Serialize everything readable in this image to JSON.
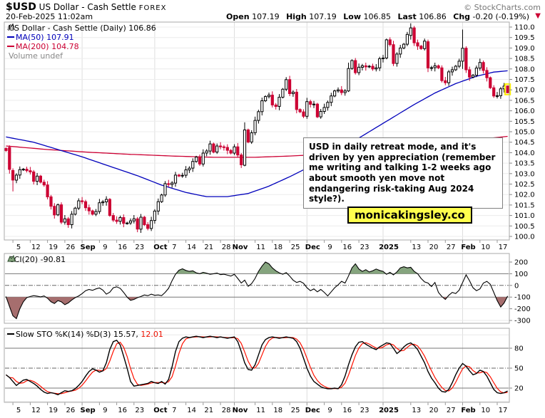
{
  "header": {
    "symbol": "$USD",
    "title": "US Dollar - Cash Settle",
    "exchange": "FOREX",
    "datetime": "20-Feb-2025 11:02am",
    "copyright": "© StockCharts.com",
    "quote": {
      "open_label": "Open",
      "open_value": "107.19",
      "high_label": "High",
      "high_value": "107.19",
      "low_label": "Low",
      "low_value": "106.85",
      "last_label": "Last",
      "last_value": "106.86",
      "chg_label": "Chg",
      "chg_value": "-0.20 (-0.19%)",
      "direction_icon": "▼"
    }
  },
  "legend": {
    "series_label": "US Dollar - Cash Settle (Daily) 106.86",
    "ma50_label": "MA(50) 107.91",
    "ma200_label": "MA(200) 104.78",
    "volume_label": "Volume undef"
  },
  "panel_labels": {
    "cci_label": "CCI(20) -90.81",
    "sto_label": "Slow STO %K(14) %D(3) 15.57,",
    "sto_d_value": "12.01"
  },
  "annotation": {
    "text": "USD in daily retreat mode, and it's driven by yen appreciation (remember me writing and talking 1-2 weeks ago about smooth yen move not endangering risk-taking Aug 2024 style?)."
  },
  "watermark": {
    "text": "monicakingsley.co"
  },
  "colors": {
    "up": "#000000",
    "down": "#cc0033",
    "ma50": "#0000bb",
    "ma200": "#cc0033",
    "cci_fill_up": "#85a47e",
    "cci_fill_down": "#a66e6e",
    "sto_k": "#000000",
    "sto_d": "#ff1100",
    "highlight": "#ffee00",
    "grid": "#ececec",
    "month_grid": "#dedede",
    "band": "#777777",
    "panel_border": "#aaaaaa"
  },
  "x_axis": {
    "labels": [
      [
        "5",
        2
      ],
      [
        "12",
        7
      ],
      [
        "19",
        12
      ],
      [
        "26",
        17
      ],
      [
        "Sep",
        22
      ],
      [
        "9",
        27
      ],
      [
        "16",
        32
      ],
      [
        "23",
        37
      ],
      [
        "Oct",
        43
      ],
      [
        "7",
        47
      ],
      [
        "14",
        52
      ],
      [
        "21",
        57
      ],
      [
        "28",
        62
      ],
      [
        "Nov",
        66
      ],
      [
        "11",
        72
      ],
      [
        "18",
        77
      ],
      [
        "25",
        82
      ],
      [
        "Dec",
        87
      ],
      [
        "9",
        92
      ],
      [
        "16",
        97
      ],
      [
        "23",
        102
      ],
      [
        "2025",
        109
      ],
      [
        "13",
        117
      ],
      [
        "20",
        122
      ],
      [
        "27",
        127
      ],
      [
        "Feb",
        132
      ],
      [
        "10",
        137
      ],
      [
        "17",
        142
      ]
    ],
    "month_grid_idx": [
      22,
      43,
      66,
      87,
      109,
      132
    ]
  },
  "chart_data": [
    {
      "type": "candlestick",
      "title": "US Dollar - Cash Settle (Daily)",
      "last": 106.86,
      "ylim": [
        99.8,
        110.3
      ],
      "y_tick_min": 100.0,
      "y_tick_max": 110.0,
      "y_tick_step": 0.5,
      "closes": [
        104.1,
        103.2,
        102.69,
        102.93,
        103.19,
        103.21,
        103.14,
        103.08,
        102.63,
        102.88,
        102.59,
        102.46,
        101.89,
        101.44,
        101.03,
        101.51,
        100.68,
        100.84,
        100.56,
        101.06,
        101.35,
        101.7,
        101.66,
        101.37,
        101.22,
        101.06,
        101.19,
        101.61,
        101.65,
        101.77,
        101.0,
        100.78,
        100.72,
        100.9,
        100.62,
        100.64,
        100.74,
        100.84,
        100.35,
        100.92,
        100.56,
        100.38,
        100.76,
        101.21,
        101.66,
        101.98,
        102.52,
        102.48,
        102.55,
        102.93,
        102.89,
        102.92,
        103.18,
        103.26,
        103.58,
        103.79,
        103.46,
        103.98,
        104.08,
        104.42,
        104.03,
        104.32,
        104.28,
        104.25,
        104.11,
        103.98,
        104.28,
        103.89,
        103.42,
        105.09,
        104.51,
        104.95,
        105.54,
        105.96,
        106.48,
        106.68,
        106.75,
        106.28,
        106.21,
        106.65,
        107.03,
        107.49,
        106.82,
        106.89,
        106.06,
        105.95,
        105.74,
        106.44,
        106.31,
        106.32,
        105.71,
        105.97,
        106.16,
        106.4,
        106.71,
        106.95,
        107.0,
        106.87,
        106.95,
        108.02,
        108.4,
        107.82,
        108.08,
        108.15,
        108.1,
        108.13,
        108.0,
        108.05,
        108.49,
        108.52,
        109.39,
        109.16,
        108.26,
        108.71,
        109.0,
        109.18,
        109.65,
        109.96,
        109.25,
        109.09,
        108.97,
        109.33,
        108.05,
        108.06,
        108.15,
        108.05,
        107.44,
        107.34,
        107.86,
        107.96,
        108.13,
        108.37,
        108.99,
        107.96,
        107.61,
        107.7,
        108.04,
        108.31,
        107.93,
        107.58,
        107.1,
        106.71,
        106.72,
        107.05,
        107.18,
        106.86
      ],
      "ohlc_overrides": {
        "1": [
          104.25,
          104.35,
          103.0,
          103.2
        ],
        "2": [
          103.15,
          103.25,
          102.15,
          102.69
        ],
        "69": [
          103.4,
          105.45,
          103.35,
          105.09
        ],
        "99": [
          106.95,
          108.3,
          106.9,
          108.02
        ],
        "117": [
          109.6,
          110.18,
          109.4,
          109.96
        ],
        "122": [
          109.3,
          109.4,
          107.85,
          108.05
        ],
        "132": [
          108.37,
          109.88,
          108.0,
          108.99
        ],
        "145": [
          107.19,
          107.19,
          106.85,
          106.86
        ]
      },
      "ma50": {
        "label": "MA(50)",
        "value": 107.91,
        "points": [
          [
            0,
            104.75
          ],
          [
            8,
            104.5
          ],
          [
            16,
            104.1
          ],
          [
            22,
            103.8
          ],
          [
            30,
            103.35
          ],
          [
            38,
            102.9
          ],
          [
            45,
            102.45
          ],
          [
            52,
            102.1
          ],
          [
            58,
            101.9
          ],
          [
            64,
            101.9
          ],
          [
            70,
            102.05
          ],
          [
            76,
            102.4
          ],
          [
            82,
            102.85
          ],
          [
            88,
            103.35
          ],
          [
            94,
            103.9
          ],
          [
            100,
            104.5
          ],
          [
            106,
            105.1
          ],
          [
            112,
            105.7
          ],
          [
            118,
            106.3
          ],
          [
            124,
            106.85
          ],
          [
            130,
            107.3
          ],
          [
            136,
            107.65
          ],
          [
            141,
            107.85
          ],
          [
            145,
            107.91
          ]
        ]
      },
      "ma200": {
        "label": "MA(200)",
        "value": 104.78,
        "points": [
          [
            0,
            104.32
          ],
          [
            12,
            104.15
          ],
          [
            24,
            104.02
          ],
          [
            36,
            103.92
          ],
          [
            48,
            103.84
          ],
          [
            60,
            103.78
          ],
          [
            72,
            103.78
          ],
          [
            82,
            103.84
          ],
          [
            92,
            103.92
          ],
          [
            102,
            104.04
          ],
          [
            112,
            104.2
          ],
          [
            122,
            104.38
          ],
          [
            130,
            104.52
          ],
          [
            138,
            104.66
          ],
          [
            145,
            104.78
          ]
        ]
      },
      "highlight_last": true
    },
    {
      "type": "area-line",
      "name": "CCI(20)",
      "last": -90.81,
      "ticks": [
        200,
        100,
        0,
        -100,
        -200,
        -300
      ],
      "upper_band": 100,
      "lower_band": -100,
      "values": [
        -95,
        -180,
        -260,
        -285,
        -200,
        -140,
        -105,
        -95,
        -88,
        -92,
        -98,
        -90,
        -110,
        -140,
        -155,
        -130,
        -140,
        -165,
        -150,
        -125,
        -105,
        -90,
        -70,
        -45,
        -35,
        -42,
        -30,
        -22,
        -40,
        -75,
        -58,
        -20,
        -12,
        -25,
        -60,
        -100,
        -128,
        -120,
        -105,
        -95,
        -82,
        -88,
        -75,
        -85,
        -82,
        -88,
        -60,
        -25,
        40,
        95,
        130,
        142,
        128,
        120,
        125,
        108,
        100,
        112,
        104,
        95,
        100,
        106,
        92,
        96,
        88,
        80,
        95,
        60,
        20,
        45,
        -8,
        15,
        60,
        120,
        165,
        200,
        185,
        150,
        125,
        108,
        95,
        110,
        80,
        45,
        25,
        35,
        18,
        -20,
        -45,
        -30,
        -55,
        -35,
        -60,
        -90,
        -55,
        -20,
        5,
        35,
        20,
        80,
        150,
        185,
        140,
        120,
        135,
        115,
        125,
        140,
        128,
        120,
        95,
        112,
        90,
        115,
        150,
        160,
        150,
        155,
        120,
        100,
        60,
        30,
        20,
        -10,
        25,
        -60,
        -95,
        -120,
        -85,
        -60,
        -70,
        -40,
        25,
        90,
        40,
        -20,
        -45,
        -30,
        20,
        35,
        10,
        -60,
        -130,
        -185,
        -150,
        -90.81
      ]
    },
    {
      "type": "line",
      "name": "Slow STO %K(14) %D(3)",
      "k_last": 15.57,
      "d_last": 12.01,
      "ticks": [
        80,
        50,
        20
      ],
      "mid": 50,
      "k": [
        40,
        36,
        30,
        24,
        28,
        32,
        33,
        30,
        27,
        23,
        18,
        14,
        12,
        13,
        12,
        10,
        13,
        16,
        15,
        16,
        19,
        24,
        30,
        38,
        45,
        49,
        47,
        44,
        46,
        58,
        78,
        90,
        92,
        85,
        68,
        50,
        30,
        23,
        24,
        25,
        26,
        27,
        30,
        28,
        27,
        30,
        26,
        33,
        52,
        75,
        90,
        95,
        97,
        96,
        97,
        98,
        97,
        96,
        97,
        98,
        97,
        96,
        97,
        96,
        95,
        96,
        97,
        90,
        75,
        58,
        48,
        47,
        55,
        70,
        85,
        93,
        96,
        97,
        96,
        95,
        96,
        97,
        96,
        95,
        90,
        80,
        65,
        50,
        38,
        30,
        26,
        22,
        20,
        19,
        19,
        20,
        19,
        25,
        38,
        55,
        70,
        82,
        89,
        90,
        86,
        83,
        80,
        78,
        82,
        85,
        88,
        87,
        80,
        72,
        76,
        82,
        86,
        88,
        84,
        78,
        68,
        58,
        45,
        35,
        28,
        20,
        15,
        14,
        18,
        28,
        40,
        50,
        57,
        53,
        46,
        40,
        42,
        47,
        45,
        38,
        28,
        18,
        13,
        12,
        13,
        15.57
      ]
    }
  ]
}
